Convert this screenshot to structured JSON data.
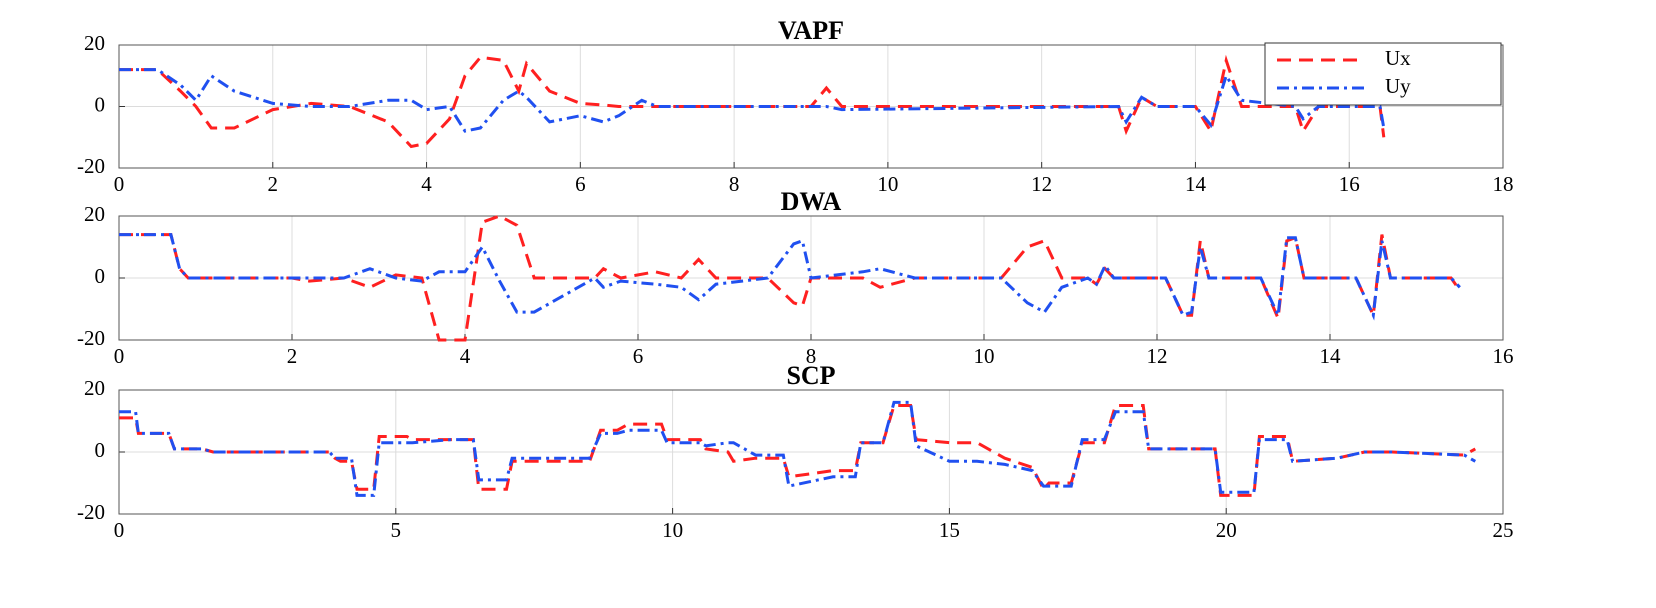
{
  "chart_data": [
    {
      "type": "line",
      "title": "VAPF",
      "xlim": [
        0,
        18
      ],
      "xticks": [
        0,
        2,
        4,
        6,
        8,
        10,
        12,
        14,
        16,
        18
      ],
      "ylim": [
        -20,
        20
      ],
      "yticks": [
        -20,
        0,
        20
      ],
      "grid": true,
      "legend": "upper right",
      "x": [
        0,
        0.5,
        0.8,
        1.0,
        1.2,
        1.5,
        2,
        2.5,
        3,
        3.5,
        3.8,
        4.0,
        4.3,
        4.5,
        4.7,
        5.0,
        5.2,
        5.3,
        5.6,
        6,
        6.3,
        6.5,
        6.8,
        7,
        9.0,
        9.2,
        9.4,
        13.0,
        13.1,
        13.3,
        13.5,
        14.0,
        14.2,
        14.4,
        14.6,
        15.3,
        15.4,
        15.6,
        16.4,
        16.45
      ],
      "series": [
        {
          "name": "Ux",
          "color": "#ff2020",
          "linestyle": "dashed",
          "values": [
            12,
            12,
            5,
            0,
            -7,
            -7,
            -1,
            1,
            0,
            -5,
            -13,
            -12,
            -4,
            10,
            16,
            15,
            5,
            14,
            5,
            1,
            0.5,
            0,
            0,
            0,
            0,
            6,
            0,
            0,
            -8,
            3,
            0,
            0,
            -8,
            15,
            0,
            0,
            -8,
            0,
            0,
            -10
          ]
        },
        {
          "name": "Uy",
          "color": "#2050f0",
          "linestyle": "dashdot",
          "values": [
            12,
            12,
            7,
            2,
            10,
            5,
            1,
            0,
            0,
            2,
            2,
            -1,
            0,
            -8,
            -7,
            2,
            5,
            3,
            -5,
            -3,
            -5,
            -3,
            2,
            0,
            0,
            0,
            -1,
            0,
            -5,
            3,
            0,
            0,
            -6,
            10,
            2,
            0,
            -4,
            0,
            0,
            -7
          ]
        }
      ]
    },
    {
      "type": "line",
      "title": "DWA",
      "xlim": [
        0,
        16
      ],
      "xticks": [
        0,
        2,
        4,
        6,
        8,
        10,
        12,
        14,
        16
      ],
      "ylim": [
        -20,
        20
      ],
      "yticks": [
        -20,
        0,
        20
      ],
      "grid": true,
      "x": [
        0,
        0.6,
        0.7,
        0.8,
        2,
        2.2,
        2.6,
        2.9,
        3.2,
        3.5,
        3.7,
        4.0,
        4.2,
        4.4,
        4.6,
        4.8,
        5.5,
        5.6,
        5.8,
        6.2,
        6.5,
        6.7,
        6.9,
        7.5,
        7.8,
        7.9,
        8.0,
        8.6,
        8.8,
        9.2,
        10.2,
        10.5,
        10.7,
        10.9,
        11.2,
        11.3,
        11.4,
        11.5,
        12.1,
        12.3,
        12.4,
        12.5,
        12.6,
        13.2,
        13.4,
        13.5,
        13.6,
        13.7,
        14.3,
        14.5,
        14.6,
        14.7,
        15.4,
        15.5
      ],
      "series": [
        {
          "color": "#ff2020",
          "linestyle": "dashed",
          "values": [
            14,
            14,
            3,
            0,
            0,
            -1,
            0,
            -3,
            1,
            0,
            -20,
            -20,
            18,
            20,
            17,
            0,
            0,
            3,
            0,
            2,
            0,
            6,
            0,
            0,
            -8,
            -9,
            0,
            0,
            -3,
            0,
            0,
            10,
            12,
            0,
            0,
            -2,
            3,
            0,
            0,
            -12,
            -12,
            12,
            0,
            0,
            -13,
            12,
            13,
            0,
            0,
            -12,
            14,
            0,
            0,
            -4
          ]
        },
        {
          "color": "#2050f0",
          "linestyle": "dashdot",
          "values": [
            14,
            14,
            3,
            0,
            0,
            0,
            0,
            3,
            0,
            -1,
            2,
            2,
            10,
            -1,
            -11,
            -11,
            0,
            -3,
            -1,
            -2,
            -3,
            -7,
            -2,
            0,
            11,
            12,
            0,
            2,
            3,
            0,
            0,
            -8,
            -11,
            -3,
            0,
            -2,
            4,
            0,
            0,
            -12,
            -11,
            10,
            0,
            0,
            -12,
            13,
            13,
            0,
            0,
            -12,
            12,
            0,
            0,
            -3
          ]
        }
      ]
    },
    {
      "type": "line",
      "title": "SCP",
      "xlim": [
        0,
        25
      ],
      "xticks": [
        0,
        5,
        10,
        15,
        20,
        25
      ],
      "ylim": [
        -20,
        20
      ],
      "yticks": [
        -20,
        0,
        20
      ],
      "grid": true,
      "x": [
        0,
        0.3,
        0.35,
        0.9,
        1.0,
        1.5,
        1.7,
        3.8,
        3.9,
        4.0,
        4.2,
        4.3,
        4.6,
        4.7,
        5.2,
        5.3,
        6.0,
        6.4,
        6.5,
        7.0,
        7.1,
        8.5,
        8.7,
        9.0,
        9.2,
        9.8,
        9.9,
        10.5,
        10.6,
        11.0,
        11.1,
        11.5,
        12.0,
        12.1,
        12.9,
        13.3,
        13.4,
        13.8,
        14.0,
        14.3,
        14.4,
        15.0,
        15.5,
        16.0,
        16.5,
        16.7,
        16.8,
        17.2,
        17.4,
        17.8,
        18.0,
        18.5,
        18.6,
        19.8,
        19.9,
        20.5,
        20.6,
        21.1,
        21.2,
        22.0,
        22.5,
        23.0,
        24.3,
        24.5
      ],
      "series": [
        {
          "color": "#ff2020",
          "linestyle": "dashed",
          "values": [
            11,
            11,
            6,
            6,
            1,
            1,
            0,
            0,
            -2,
            -3,
            -3,
            -12,
            -12,
            5,
            5,
            4,
            4,
            4,
            -12,
            -12,
            -3,
            -3,
            7,
            7,
            9,
            9,
            4,
            4,
            1,
            0,
            -3,
            -2,
            -2,
            -8,
            -6,
            -6,
            3,
            3,
            15,
            15,
            4,
            3,
            3,
            -2,
            -5,
            -12,
            -10,
            -10,
            3,
            3,
            15,
            15,
            1,
            1,
            -14,
            -14,
            5,
            5,
            -3,
            -2,
            0,
            0,
            -1,
            1
          ]
        },
        {
          "color": "#2050f0",
          "linestyle": "dashdot",
          "values": [
            13,
            13,
            6,
            6,
            1,
            1,
            0,
            0,
            -2,
            -2,
            -2,
            -14,
            -14,
            3,
            3,
            3,
            4,
            4,
            -9,
            -9,
            -2,
            -2,
            6,
            6,
            7,
            7,
            3,
            3,
            2,
            3,
            3,
            -1,
            -1,
            -11,
            -8,
            -8,
            3,
            3,
            16,
            16,
            2,
            -3,
            -3,
            -4,
            -6,
            -11,
            -11,
            -11,
            4,
            4,
            13,
            13,
            1,
            1,
            -13,
            -13,
            4,
            4,
            -3,
            -2,
            0,
            0,
            -1,
            -3
          ]
        }
      ]
    }
  ]
}
